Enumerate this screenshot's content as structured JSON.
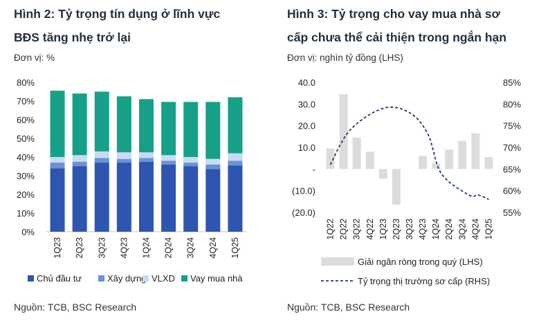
{
  "left": {
    "title_line1": "Hình 2:  Tỷ trọng tín dụng ở lĩnh vực",
    "title_line2": "BĐS tăng nhẹ trở lại",
    "unit": "Đơn vị: %",
    "source": "Nguồn: TCB, BSC Research"
  },
  "right": {
    "title_line1": "Hình 3: Tỷ trọng cho vay mua nhà sơ",
    "title_line2": "cấp chưa thể cải thiện trong ngắn hạn",
    "unit": "Đơn vị: nghìn tỷ đồng (LHS)",
    "source": "Nguồn: TCB, BSC Research"
  },
  "colors": {
    "developer": "#2e56b0",
    "construction": "#6b91d6",
    "building_materials": "#c9daf2",
    "mortgage": "#17a088",
    "disbursement": "#dcdcdc",
    "share_line": "#1f3a6e"
  },
  "chart_data": [
    {
      "type": "bar",
      "stacked": true,
      "categories": [
        "1Q23",
        "2Q23",
        "3Q23",
        "4Q23",
        "1Q24",
        "2Q24",
        "3Q24",
        "4Q24",
        "1Q25"
      ],
      "series": [
        {
          "name": "Chủ đầu tư",
          "values": [
            34,
            35,
            37,
            37,
            37.5,
            36,
            35,
            33.5,
            35.5
          ]
        },
        {
          "name": "Xây dựng",
          "values": [
            3,
            2.5,
            2.5,
            2,
            2,
            2,
            2,
            2.5,
            2.5
          ]
        },
        {
          "name": "VLXD",
          "values": [
            3,
            3.5,
            3.5,
            3.5,
            3,
            3,
            3,
            3,
            4
          ]
        },
        {
          "name": "Vay mua nhà",
          "values": [
            35.5,
            33,
            32,
            30,
            28.5,
            28.5,
            29.5,
            30.5,
            30
          ]
        }
      ],
      "ylim": [
        0,
        80
      ],
      "yticks": [
        "0%",
        "10%",
        "20%",
        "30%",
        "40%",
        "50%",
        "60%",
        "70%",
        "80%"
      ],
      "legend": "bottom"
    },
    {
      "type": "bar+line",
      "categories": [
        "1Q22",
        "2Q22",
        "3Q22",
        "4Q22",
        "1Q23",
        "2Q23",
        "3Q23",
        "4Q23",
        "1Q24",
        "2Q24",
        "3Q24",
        "4Q24",
        "1Q25"
      ],
      "bar_series": {
        "name": "Giải ngân ròng trong quý (LHS)",
        "values": [
          9.5,
          34.5,
          14.5,
          8,
          -4.5,
          -16.5,
          0,
          6,
          2.5,
          9,
          13,
          16.5,
          5.5
        ]
      },
      "line_series": {
        "name": "Tỷ trọng thị trường sơ cấp (RHS)",
        "values": [
          66,
          74,
          79,
          78,
          73,
          64,
          59,
          59,
          58
        ]
      },
      "line_x": [
        0,
        1,
        2,
        3,
        4,
        5,
        6,
        7,
        8
      ],
      "line_x_note": "line positioned on fractional category index from 1Q22 (0) to 1Q25 (12)",
      "line_x_values": [
        0,
        1.5,
        4.0,
        6.0,
        7.4,
        8.4,
        10.5,
        11.2,
        12.0
      ],
      "ylim_left": [
        -20,
        40
      ],
      "yticks_left": [
        "(20.0)",
        "(10.0)",
        "-",
        "10.0",
        "20.0",
        "30.0",
        "40.0"
      ],
      "ylim_right": [
        55,
        85
      ],
      "yticks_right": [
        "55%",
        "60%",
        "65%",
        "70%",
        "75%",
        "80%",
        "85%"
      ],
      "legend": "bottom"
    }
  ]
}
